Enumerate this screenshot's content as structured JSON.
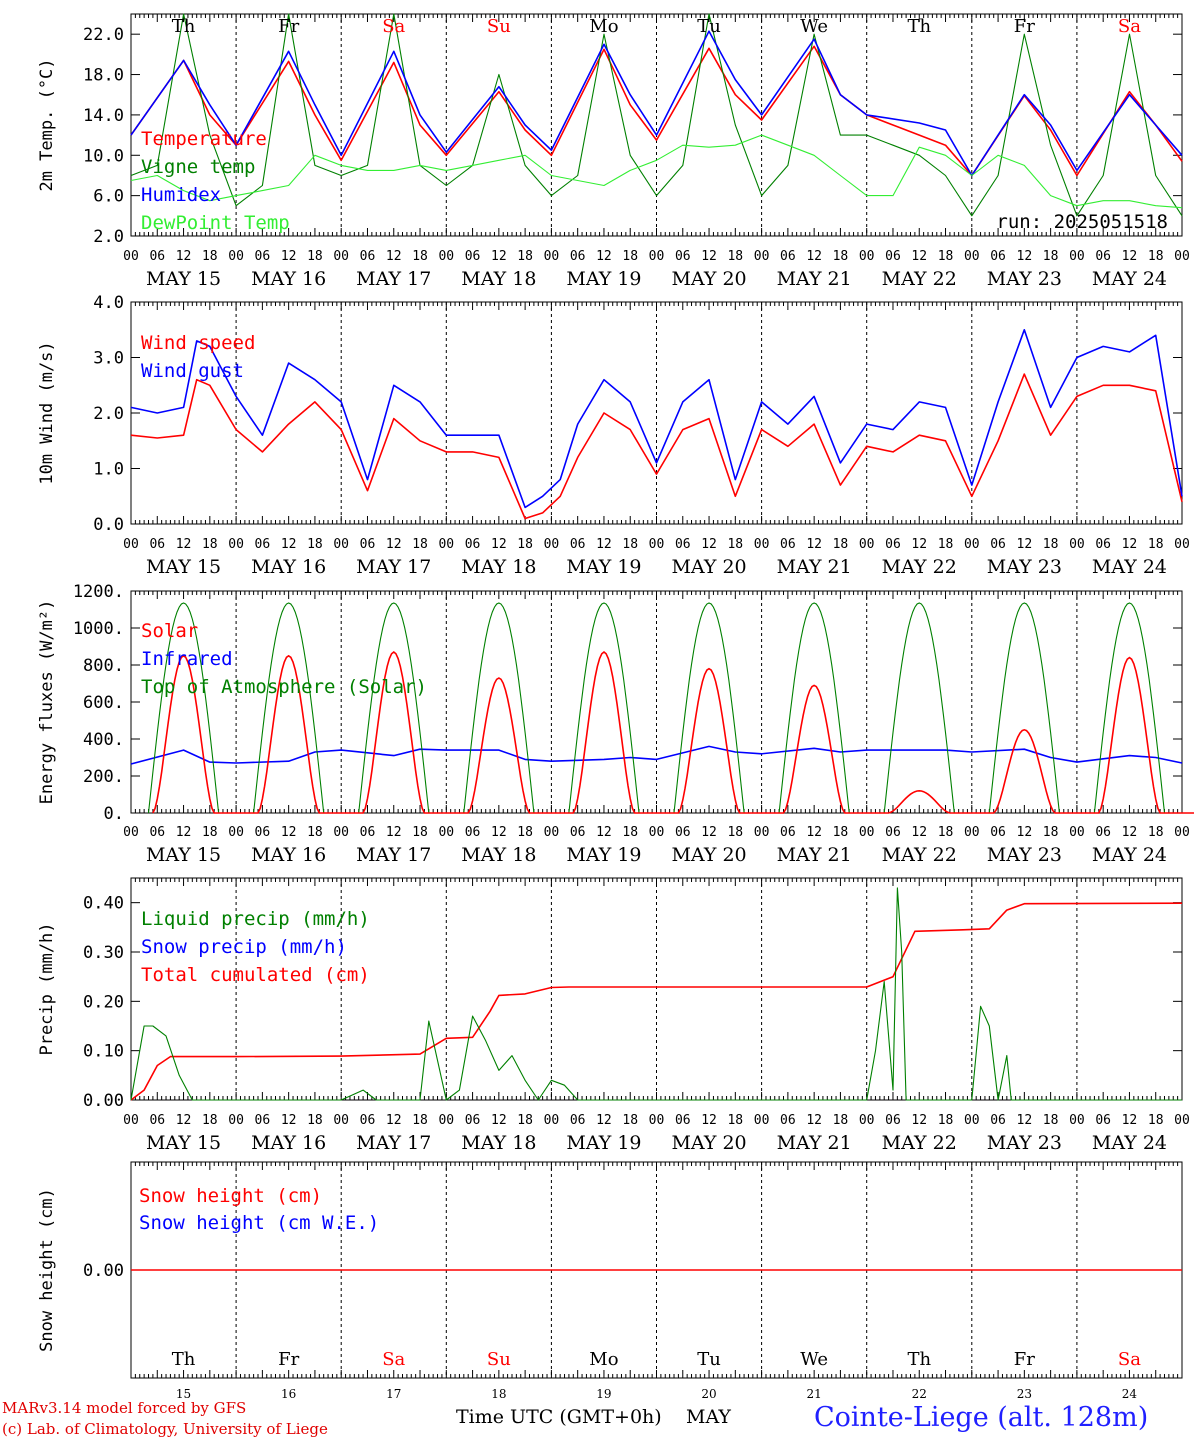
{
  "footer": {
    "model": "MARv3.14 model forced by GFS",
    "copyright": "(c) Lab. of Climatology, University of Liege",
    "time_title": "Time UTC (GMT+0h)",
    "month": "MAY",
    "station": "Cointe-Liege (alt. 128m)"
  },
  "run_label": "run: 2025051518",
  "colors": {
    "red": "#ff0000",
    "green": "#008000",
    "blue": "#0000ff",
    "lightgreen": "#33ee33",
    "sat_sun": "#ff0000",
    "weekday": "#000000"
  },
  "days": [
    "Th",
    "Fr",
    "Sa",
    "Su",
    "Mo",
    "Tu",
    "We",
    "Th",
    "Fr",
    "Sa"
  ],
  "day_numbers": [
    "15",
    "16",
    "17",
    "18",
    "19",
    "20",
    "21",
    "22",
    "23",
    "24"
  ],
  "date_labels": [
    "MAY 15",
    "MAY 16",
    "MAY 17",
    "MAY 18",
    "MAY 19",
    "MAY 20",
    "MAY 21",
    "MAY 22",
    "MAY 23",
    "MAY 24"
  ],
  "hour_labels": [
    "00",
    "06",
    "12",
    "18"
  ],
  "chart_data": [
    {
      "type": "line",
      "panel": "temperature",
      "ylabel": "2m Temp. (°C)",
      "ylim": [
        2.0,
        24.0
      ],
      "yticks": [
        "2.0",
        "6.0",
        "10.0",
        "14.0",
        "18.0",
        "22.0"
      ],
      "x_unit": "hours since MAY 15 00 UTC",
      "legend": [
        "Temperature",
        "Vigne temp",
        "Humidex",
        "DewPoint Temp"
      ],
      "series": [
        {
          "name": "Temperature",
          "color": "red",
          "x": [
            0,
            12,
            18,
            24,
            36,
            42,
            48,
            60,
            66,
            72,
            84,
            90,
            96,
            108,
            114,
            120,
            132,
            138,
            144,
            156,
            162,
            168,
            180,
            186,
            192,
            204,
            210,
            216,
            228,
            234,
            240
          ],
          "values": [
            12,
            19.4,
            14,
            11,
            19.3,
            14,
            9.5,
            19.2,
            13,
            10,
            16.3,
            12.5,
            10,
            20.5,
            15,
            11.5,
            20.6,
            16,
            13.5,
            20.8,
            16,
            14,
            12,
            11,
            8,
            15.9,
            12.5,
            8,
            16.3,
            13,
            9.4
          ]
        },
        {
          "name": "Vigne temp",
          "color": "green",
          "x": [
            0,
            6,
            12,
            18,
            24,
            30,
            36,
            42,
            48,
            54,
            60,
            66,
            72,
            78,
            84,
            90,
            96,
            102,
            108,
            114,
            120,
            126,
            132,
            138,
            144,
            150,
            156,
            162,
            168,
            174,
            180,
            186,
            192,
            198,
            204,
            210,
            216,
            222,
            228,
            234,
            240
          ],
          "values": [
            8,
            9,
            30,
            12,
            5,
            7,
            30,
            9,
            8,
            9,
            30,
            9,
            7,
            9,
            18,
            9,
            6,
            8,
            22,
            10,
            6,
            9,
            24,
            13,
            6,
            9,
            22,
            12,
            12,
            11,
            10,
            8,
            4,
            8,
            22,
            11,
            4,
            8,
            22,
            8,
            4
          ]
        },
        {
          "name": "Humidex",
          "color": "blue",
          "x": [
            0,
            12,
            18,
            24,
            36,
            42,
            48,
            60,
            66,
            72,
            84,
            90,
            96,
            108,
            114,
            120,
            132,
            138,
            144,
            156,
            162,
            168,
            180,
            186,
            192,
            204,
            210,
            216,
            228,
            234,
            240
          ],
          "values": [
            12,
            19.4,
            15,
            11,
            20.3,
            15,
            10,
            20.3,
            14,
            10.3,
            16.8,
            13,
            10.5,
            21,
            16,
            12,
            22.3,
            17.5,
            14,
            21.5,
            16,
            14,
            13.2,
            12.5,
            8,
            16,
            13,
            8.5,
            16,
            13,
            10
          ]
        },
        {
          "name": "DewPoint Temp",
          "color": "lightgreen",
          "x": [
            0,
            6,
            12,
            18,
            24,
            30,
            36,
            42,
            48,
            54,
            60,
            66,
            72,
            78,
            84,
            90,
            96,
            102,
            108,
            114,
            120,
            126,
            132,
            138,
            144,
            150,
            156,
            162,
            168,
            174,
            180,
            186,
            192,
            198,
            204,
            210,
            216,
            222,
            228,
            234,
            240
          ],
          "values": [
            7.5,
            8,
            6.5,
            5.5,
            6,
            6.5,
            7,
            10,
            9,
            8.5,
            8.5,
            9,
            8.5,
            9,
            9.5,
            10,
            8,
            7.5,
            7,
            8.5,
            9.5,
            11,
            10.8,
            11,
            12,
            11,
            10,
            8,
            6,
            6,
            10.8,
            10,
            8,
            10,
            9,
            6,
            5,
            5.5,
            5.5,
            5,
            4.8
          ]
        }
      ]
    },
    {
      "type": "line",
      "panel": "wind",
      "ylabel": "10m Wind (m/s)",
      "ylim": [
        0.0,
        4.0
      ],
      "yticks": [
        "0.0",
        "1.0",
        "2.0",
        "3.0",
        "4.0"
      ],
      "x_unit": "hours since MAY 15 00 UTC",
      "legend": [
        "Wind speed",
        "Wind gust"
      ],
      "series": [
        {
          "name": "Wind speed",
          "color": "red",
          "x": [
            0,
            6,
            12,
            15,
            18,
            24,
            30,
            36,
            42,
            48,
            54,
            60,
            66,
            72,
            78,
            84,
            90,
            94,
            98,
            102,
            108,
            114,
            120,
            126,
            132,
            138,
            144,
            150,
            156,
            162,
            168,
            174,
            180,
            186,
            192,
            198,
            204,
            210,
            216,
            222,
            228,
            234,
            240
          ],
          "values": [
            1.6,
            1.55,
            1.6,
            2.6,
            2.5,
            1.7,
            1.3,
            1.8,
            2.2,
            1.7,
            0.6,
            1.9,
            1.5,
            1.3,
            1.3,
            1.2,
            0.1,
            0.2,
            0.5,
            1.2,
            2.0,
            1.7,
            0.9,
            1.7,
            1.9,
            0.5,
            1.7,
            1.4,
            1.8,
            0.7,
            1.4,
            1.3,
            1.6,
            1.5,
            0.5,
            1.5,
            2.7,
            1.6,
            2.3,
            2.5,
            2.5,
            2.4,
            0.4
          ]
        },
        {
          "name": "Wind gust",
          "color": "blue",
          "x": [
            0,
            6,
            12,
            15,
            18,
            24,
            30,
            36,
            42,
            48,
            54,
            60,
            66,
            72,
            78,
            84,
            90,
            94,
            98,
            102,
            108,
            114,
            120,
            126,
            132,
            138,
            144,
            150,
            156,
            162,
            168,
            174,
            180,
            186,
            192,
            198,
            204,
            210,
            216,
            222,
            228,
            234,
            240
          ],
          "values": [
            2.1,
            2.0,
            2.1,
            3.3,
            3.2,
            2.3,
            1.6,
            2.9,
            2.6,
            2.2,
            0.8,
            2.5,
            2.2,
            1.6,
            1.6,
            1.6,
            0.3,
            0.5,
            0.8,
            1.8,
            2.6,
            2.2,
            1.1,
            2.2,
            2.6,
            0.8,
            2.2,
            1.8,
            2.3,
            1.1,
            1.8,
            1.7,
            2.2,
            2.1,
            0.7,
            2.2,
            3.5,
            2.1,
            3.0,
            3.2,
            3.1,
            3.4,
            0.5
          ]
        }
      ]
    },
    {
      "type": "line",
      "panel": "energy",
      "ylabel": "Energy fluxes (W/m²)",
      "ylim": [
        0,
        1200
      ],
      "yticks": [
        "0.",
        "200.",
        "400.",
        "600.",
        "800.",
        "1000.",
        "1200."
      ],
      "x_unit": "hours since MAY 15 00 UTC",
      "legend": [
        "Solar",
        "Infrared",
        "Top of Atmosphere (Solar)"
      ],
      "solar_peaks": [
        850,
        850,
        870,
        730,
        870,
        780,
        690,
        120,
        450,
        840
      ],
      "toa_peak": 1135,
      "series": [
        {
          "name": "Infrared",
          "color": "blue",
          "x": [
            0,
            12,
            18,
            24,
            36,
            42,
            48,
            60,
            66,
            72,
            84,
            90,
            96,
            108,
            114,
            120,
            132,
            138,
            144,
            156,
            162,
            168,
            180,
            186,
            192,
            204,
            210,
            216,
            228,
            234,
            240
          ],
          "values": [
            265,
            340,
            275,
            270,
            280,
            330,
            340,
            310,
            345,
            340,
            340,
            290,
            280,
            290,
            300,
            290,
            360,
            330,
            320,
            350,
            330,
            340,
            340,
            340,
            330,
            345,
            300,
            275,
            310,
            300,
            270
          ]
        }
      ]
    },
    {
      "type": "line",
      "panel": "precip",
      "ylabel": "Precip (mm/h)",
      "ylim": [
        0.0,
        0.45
      ],
      "yticks": [
        "0.00",
        "0.10",
        "0.20",
        "0.30",
        "0.40"
      ],
      "x_unit": "hours since MAY 15 00 UTC",
      "legend": [
        "Liquid precip (mm/h)",
        "Snow precip (mm/h)",
        "Total cumulated (cm)"
      ],
      "series": [
        {
          "name": "Total cumulated (cm)",
          "color": "red",
          "x": [
            0,
            3,
            6,
            9,
            24,
            48,
            66,
            72,
            78,
            82,
            84,
            90,
            96,
            100,
            120,
            144,
            168,
            174,
            179,
            190,
            196,
            200,
            204,
            240
          ],
          "values": [
            0,
            0.02,
            0.07,
            0.088,
            0.088,
            0.089,
            0.093,
            0.125,
            0.127,
            0.18,
            0.212,
            0.215,
            0.228,
            0.229,
            0.229,
            0.229,
            0.229,
            0.25,
            0.342,
            0.345,
            0.347,
            0.385,
            0.398,
            0.399
          ]
        },
        {
          "name": "Liquid precip (mm/h)",
          "color": "green",
          "x": [
            0,
            3,
            5,
            8,
            11,
            14,
            48,
            53,
            56,
            66,
            68,
            72,
            75,
            78,
            81,
            84,
            87,
            90,
            93,
            96,
            99,
            102,
            105,
            168,
            170,
            172,
            174,
            175,
            176,
            177,
            180,
            183,
            192,
            194,
            196,
            198,
            200,
            201,
            202,
            203,
            240
          ],
          "values": [
            0,
            0.15,
            0.15,
            0.13,
            0.05,
            0,
            0,
            0.02,
            0,
            0,
            0.16,
            0,
            0.02,
            0.17,
            0.12,
            0.06,
            0.09,
            0.04,
            0,
            0.04,
            0.03,
            0,
            0,
            0,
            0.1,
            0.24,
            0.02,
            0.43,
            0.3,
            0,
            0,
            0,
            0,
            0.19,
            0.15,
            0,
            0.09,
            0,
            0,
            0,
            0
          ]
        },
        {
          "name": "Snow precip (mm/h)",
          "color": "blue",
          "x": [
            0,
            240
          ],
          "values": [
            0,
            0
          ]
        }
      ]
    },
    {
      "type": "line",
      "panel": "snow",
      "ylabel": "Snow height (cm)",
      "ylim": [
        -1,
        1
      ],
      "yticks": [
        "0.00"
      ],
      "x_unit": "hours since MAY 15 00 UTC",
      "legend": [
        "Snow height (cm)",
        "Snow height (cm W.E.)"
      ],
      "series": [
        {
          "name": "Snow height (cm)",
          "color": "red",
          "x": [
            0,
            240
          ],
          "values": [
            0,
            0
          ]
        },
        {
          "name": "Snow height (cm W.E.)",
          "color": "blue",
          "x": [
            0,
            240
          ],
          "values": [
            0,
            0
          ]
        }
      ]
    }
  ]
}
